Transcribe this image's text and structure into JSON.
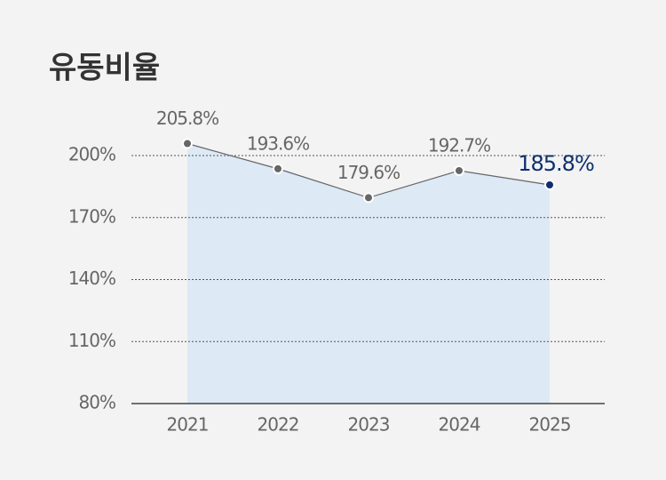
{
  "chart_data": {
    "type": "line",
    "title": "유동비율",
    "categories": [
      "2021",
      "2022",
      "2023",
      "2024",
      "2025"
    ],
    "series": [
      {
        "color": "#666666",
        "values": [
          205.8,
          193.6,
          179.6,
          192.7,
          185.8
        ],
        "value_labels": [
          "205.8%",
          "193.6%",
          "179.6%",
          "192.7%",
          "185.8%"
        ]
      }
    ],
    "area_color": "#dde9f5",
    "highlight_color": "#0e2f6e",
    "ylim": [
      80,
      210
    ],
    "yticks": [
      {
        "value": 80,
        "label": "80%"
      },
      {
        "value": 110,
        "label": "110%"
      },
      {
        "value": 140,
        "label": "140%"
      },
      {
        "value": 170,
        "label": "170%"
      },
      {
        "value": 200,
        "label": "200%"
      }
    ],
    "grid": true
  }
}
